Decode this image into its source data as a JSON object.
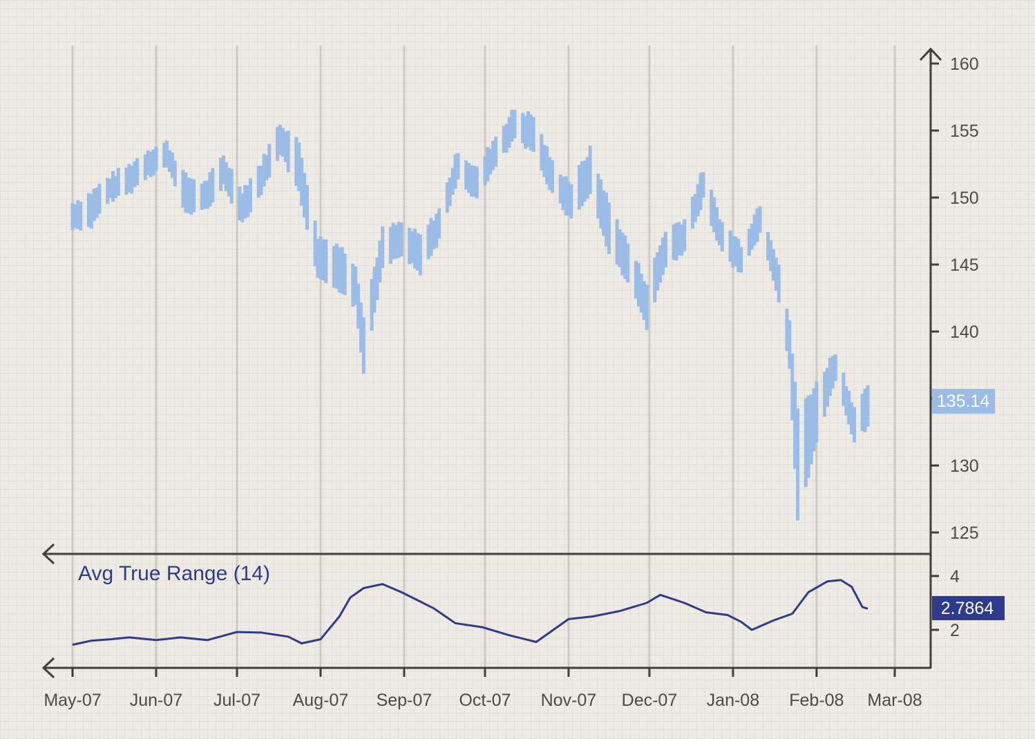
{
  "colors": {
    "price": "#9bbce6",
    "atr": "#2e3a8c",
    "axis": "#3e3e3e",
    "grid": "#cdcac4",
    "price_tag": "#9bbce6",
    "atr_tag": "#2e3a8c"
  },
  "chart_data": [
    {
      "type": "line",
      "title": "",
      "style": "price range bars",
      "x_ticks": [
        "May-07",
        "Jun-07",
        "Jul-07",
        "Aug-07",
        "Sep-07",
        "Oct-07",
        "Nov-07",
        "Dec-07",
        "Jan-08",
        "Feb-08",
        "Mar-08"
      ],
      "y_ticks": [
        160,
        155,
        150,
        145,
        140,
        135,
        130,
        125
      ],
      "y_tick_labels": [
        "160",
        "155",
        "150",
        "145",
        "140",
        "",
        "130",
        "125"
      ],
      "ylim": [
        123.5,
        161
      ],
      "y_axis_side": "right",
      "grid": "vertical",
      "last_value_label": "135.14",
      "last_value": 135.14,
      "series": [
        {
          "x": [
            "2007-05-01",
            "2007-05-08",
            "2007-05-15",
            "2007-05-22",
            "2007-05-29",
            "2007-06-05",
            "2007-06-12",
            "2007-06-19",
            "2007-06-26",
            "2007-07-03",
            "2007-07-10",
            "2007-07-17",
            "2007-07-24",
            "2007-07-31",
            "2007-08-07",
            "2007-08-14",
            "2007-08-17",
            "2007-08-24",
            "2007-08-31",
            "2007-09-07",
            "2007-09-14",
            "2007-09-21",
            "2007-09-28",
            "2007-10-05",
            "2007-10-12",
            "2007-10-19",
            "2007-10-26",
            "2007-11-02",
            "2007-11-09",
            "2007-11-16",
            "2007-11-23",
            "2007-11-30",
            "2007-12-07",
            "2007-12-14",
            "2007-12-21",
            "2007-12-28",
            "2008-01-04",
            "2008-01-11",
            "2008-01-18",
            "2008-01-22",
            "2008-01-25",
            "2008-02-01",
            "2008-02-08",
            "2008-02-15",
            "2008-02-20"
          ],
          "values": [
            149,
            149.8,
            151,
            151.8,
            153,
            153.5,
            151,
            150.5,
            152.5,
            150,
            152,
            155,
            153.5,
            146.5,
            146,
            144.5,
            140.5,
            147,
            147.5,
            146.5,
            148.5,
            153,
            151.5,
            154,
            156,
            155.5,
            152,
            150.5,
            153,
            149,
            146,
            143,
            147,
            147.8,
            151.5,
            147.5,
            146,
            149,
            144.5,
            140,
            133.5,
            135.5,
            138,
            133.8,
            135.14
          ],
          "lows": [
            147.8,
            148,
            150,
            150.5,
            151.8,
            152.5,
            149,
            149.2,
            151,
            148.3,
            150.5,
            153.5,
            150.5,
            144,
            143.5,
            142,
            137,
            145,
            146,
            144.5,
            147,
            151.5,
            150,
            152.5,
            154.5,
            153.5,
            150.5,
            148.5,
            150.5,
            146,
            144,
            140.5,
            145,
            146,
            150,
            146,
            144.5,
            147.5,
            142.5,
            137.5,
            126,
            132,
            136.5,
            132,
            133
          ]
        }
      ]
    },
    {
      "type": "line",
      "title": "Avg True Range (14)",
      "y_ticks": [
        4,
        2
      ],
      "ylim": [
        1.2,
        4.3
      ],
      "y_axis_side": "right",
      "grid": "vertical",
      "last_value_label": "2.7864",
      "last_value": 2.7864,
      "series": [
        {
          "x": [
            "2007-05-01",
            "2007-05-08",
            "2007-05-15",
            "2007-05-22",
            "2007-06-01",
            "2007-06-10",
            "2007-06-20",
            "2007-07-01",
            "2007-07-10",
            "2007-07-20",
            "2007-07-25",
            "2007-08-01",
            "2007-08-08",
            "2007-08-12",
            "2007-08-17",
            "2007-08-24",
            "2007-08-31",
            "2007-09-05",
            "2007-09-12",
            "2007-09-20",
            "2007-09-30",
            "2007-10-10",
            "2007-10-20",
            "2007-11-01",
            "2007-11-10",
            "2007-11-20",
            "2007-11-30",
            "2007-12-05",
            "2007-12-14",
            "2007-12-22",
            "2007-12-30",
            "2008-01-04",
            "2008-01-08",
            "2008-01-16",
            "2008-01-23",
            "2008-01-29",
            "2008-02-05",
            "2008-02-10",
            "2008-02-14",
            "2008-02-18",
            "2008-02-20"
          ],
          "values": [
            1.45,
            1.6,
            1.65,
            1.72,
            1.62,
            1.72,
            1.62,
            1.92,
            1.9,
            1.75,
            1.5,
            1.65,
            2.5,
            3.2,
            3.55,
            3.7,
            3.4,
            3.15,
            2.8,
            2.25,
            2.1,
            1.8,
            1.55,
            2.4,
            2.5,
            2.7,
            3.0,
            3.3,
            3.0,
            2.65,
            2.55,
            2.3,
            2.0,
            2.35,
            2.6,
            3.4,
            3.8,
            3.85,
            3.6,
            2.85,
            2.7864
          ]
        }
      ]
    }
  ]
}
